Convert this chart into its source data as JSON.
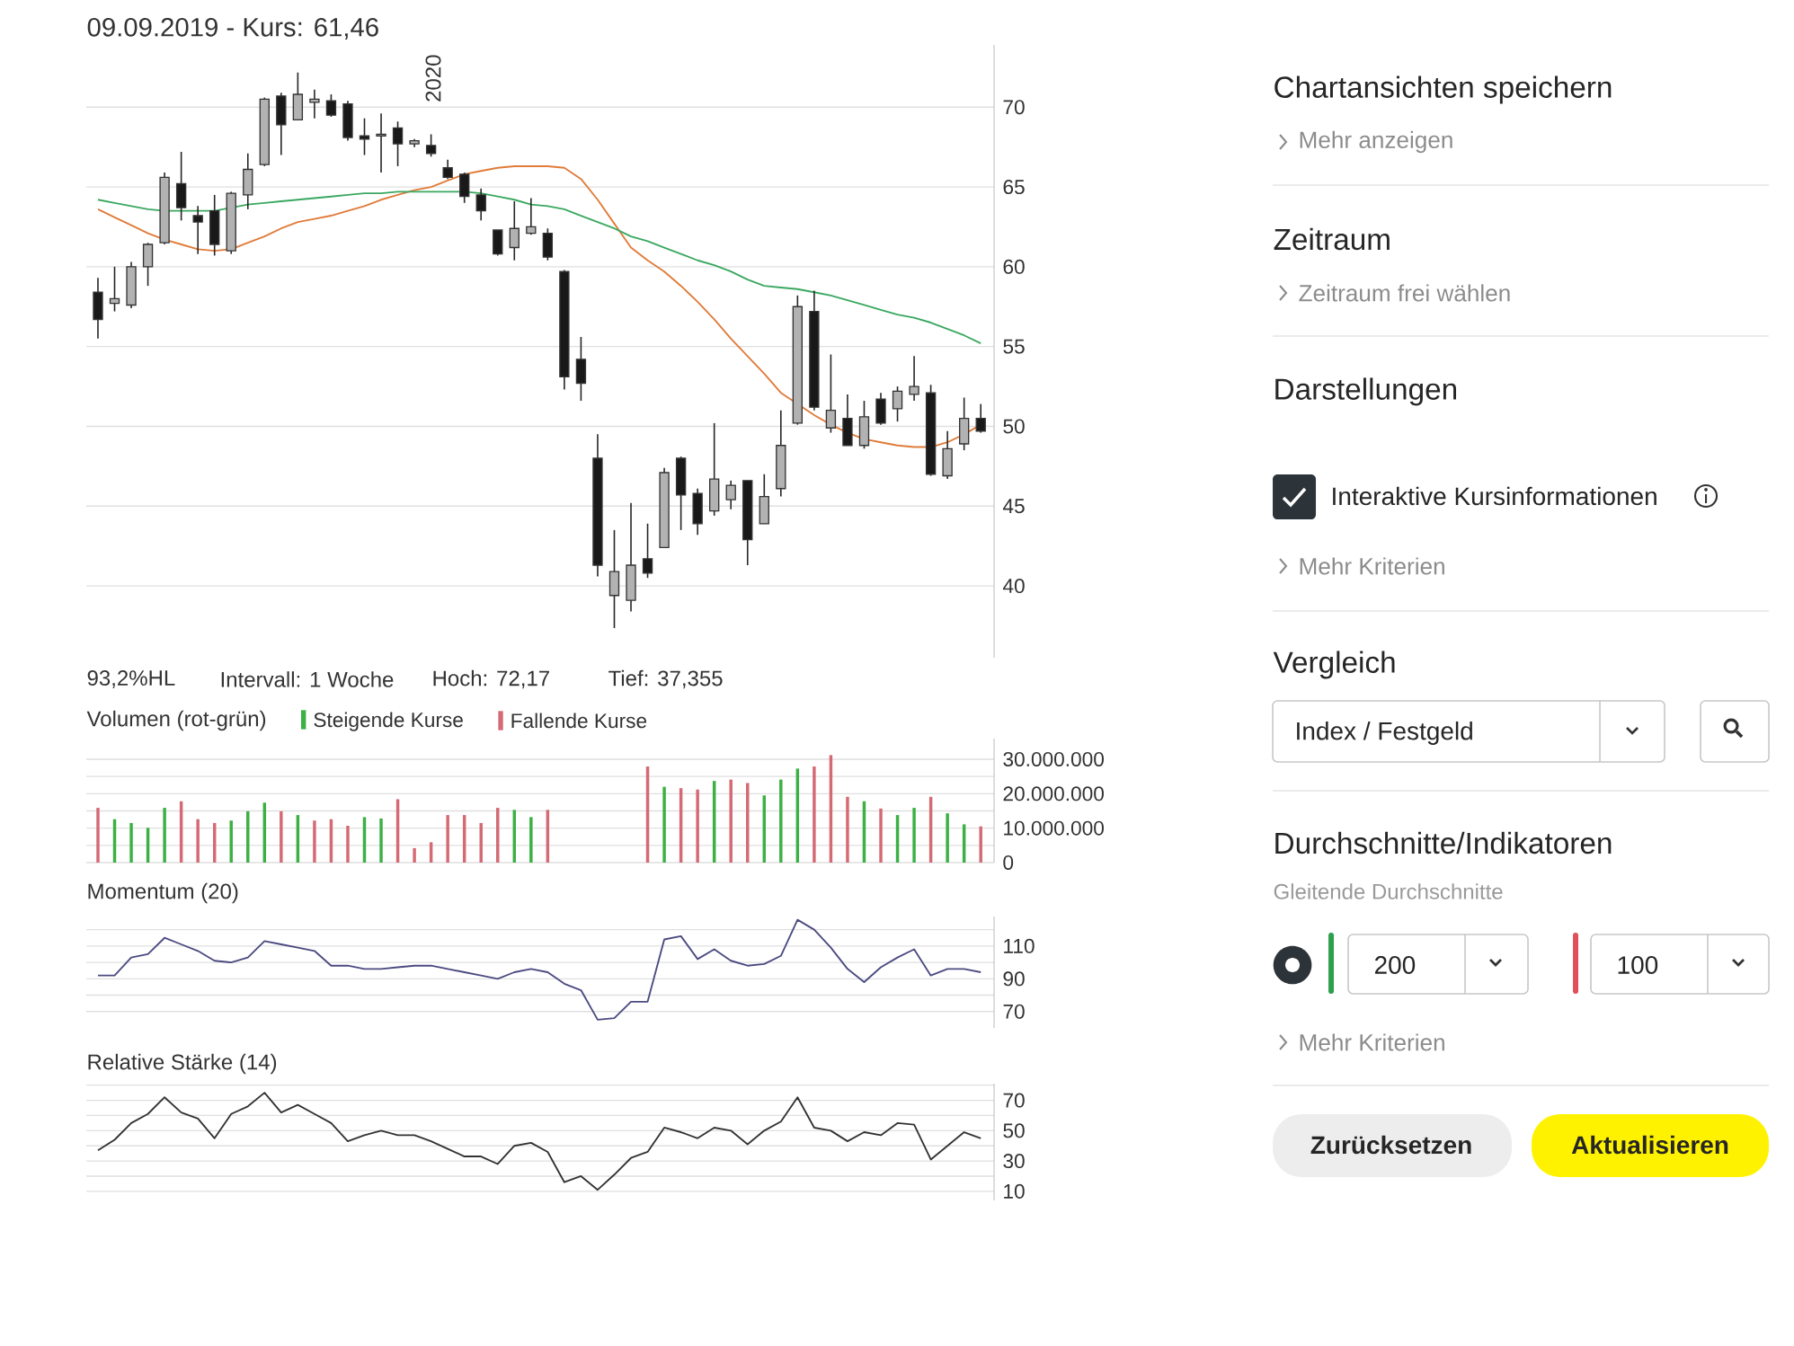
{
  "chart_data": [
    {
      "type": "candlestick",
      "title": "09.09.2019  -  Kurs: 61,46",
      "categories": [
        null,
        null,
        null,
        null,
        null,
        null,
        null,
        null,
        null,
        null,
        null,
        null,
        null,
        null,
        null,
        null,
        null,
        null,
        null,
        null,
        null,
        null,
        null,
        null,
        null,
        null,
        null,
        null,
        null,
        null,
        null,
        null,
        null,
        null,
        null,
        null,
        null,
        null,
        null,
        null,
        null,
        null,
        null,
        null,
        null,
        null,
        null,
        null,
        null,
        null,
        null,
        null,
        null,
        null
      ],
      "ohlc": [
        [
          58.4,
          59.3,
          55.5,
          56.7
        ],
        [
          57.7,
          60.0,
          57.2,
          58.0
        ],
        [
          57.6,
          60.3,
          57.4,
          60.0
        ],
        [
          60.0,
          61.5,
          58.8,
          61.4
        ],
        [
          61.5,
          65.9,
          61.4,
          65.6
        ],
        [
          65.2,
          67.2,
          62.9,
          63.7
        ],
        [
          63.2,
          63.8,
          60.8,
          62.8
        ],
        [
          63.5,
          64.5,
          60.7,
          61.4
        ],
        [
          61.0,
          64.7,
          60.8,
          64.6
        ],
        [
          64.5,
          67.1,
          63.6,
          66.1
        ],
        [
          66.4,
          70.6,
          66.3,
          70.5
        ],
        [
          70.7,
          70.9,
          67.0,
          68.9
        ],
        [
          69.2,
          72.17,
          69.2,
          70.8
        ],
        [
          70.3,
          71.1,
          69.3,
          70.5
        ],
        [
          70.4,
          70.8,
          69.4,
          69.5
        ],
        [
          70.2,
          70.4,
          67.9,
          68.1
        ],
        [
          68.2,
          69.3,
          67.0,
          68.0
        ],
        [
          68.2,
          69.6,
          65.9,
          68.3
        ],
        [
          68.7,
          69.1,
          66.3,
          67.7
        ],
        [
          67.7,
          68.0,
          67.5,
          67.9
        ],
        [
          67.6,
          68.3,
          66.9,
          67.1
        ],
        [
          66.2,
          66.7,
          65.5,
          65.6
        ],
        [
          65.8,
          65.9,
          64.0,
          64.4
        ],
        [
          64.5,
          64.9,
          62.9,
          63.5
        ],
        [
          62.3,
          62.3,
          60.7,
          60.8
        ],
        [
          61.2,
          64.1,
          60.4,
          62.4
        ],
        [
          62.1,
          64.3,
          62.0,
          62.5
        ],
        [
          62.1,
          62.4,
          60.4,
          60.6
        ],
        [
          59.7,
          59.8,
          52.3,
          53.1
        ],
        [
          54.2,
          55.6,
          51.6,
          52.7
        ],
        [
          48.0,
          49.5,
          40.6,
          41.3
        ],
        [
          39.4,
          43.5,
          37.355,
          40.9
        ],
        [
          39.1,
          45.2,
          38.4,
          41.3
        ],
        [
          41.7,
          43.9,
          40.5,
          40.8
        ],
        [
          42.4,
          47.4,
          42.4,
          47.1
        ],
        [
          48.0,
          48.1,
          43.5,
          45.7
        ],
        [
          45.8,
          46.1,
          43.2,
          43.9
        ],
        [
          44.7,
          50.2,
          44.4,
          46.7
        ],
        [
          45.4,
          46.6,
          44.8,
          46.3
        ],
        [
          46.6,
          46.6,
          41.3,
          42.9
        ],
        [
          43.9,
          47.0,
          43.9,
          45.6
        ],
        [
          46.1,
          51.0,
          45.6,
          48.8
        ],
        [
          50.2,
          58.2,
          50.1,
          57.5
        ],
        [
          57.2,
          58.5,
          51.0,
          51.2
        ],
        [
          49.9,
          54.5,
          49.6,
          51.0
        ],
        [
          50.5,
          52.0,
          48.8,
          48.8
        ],
        [
          48.8,
          51.6,
          48.6,
          50.6
        ],
        [
          51.7,
          52.1,
          50.1,
          50.2
        ],
        [
          51.1,
          52.5,
          50.3,
          52.2
        ],
        [
          52.0,
          54.4,
          51.6,
          52.5
        ],
        [
          52.1,
          52.6,
          46.9,
          47.0
        ],
        [
          46.9,
          49.7,
          46.7,
          48.6
        ],
        [
          48.9,
          51.8,
          48.5,
          50.5
        ],
        [
          50.5,
          51.4,
          49.6,
          49.7
        ]
      ],
      "series": [
        {
          "type": "line",
          "color": "#e07b39",
          "values": [
            63.6,
            63.1,
            62.6,
            62.1,
            61.7,
            61.4,
            61.1,
            61.0,
            61.1,
            61.5,
            61.9,
            62.4,
            62.8,
            63.0,
            63.2,
            63.5,
            63.8,
            64.2,
            64.5,
            64.8,
            65.0,
            65.4,
            65.8,
            66.0,
            66.2,
            66.3,
            66.3,
            66.3,
            66.2,
            65.5,
            64.2,
            62.7,
            61.2,
            60.4,
            59.7,
            58.8,
            57.8,
            56.7,
            55.5,
            54.4,
            53.3,
            52.1,
            51.4,
            50.7,
            50.1,
            49.6,
            49.2,
            49.0,
            48.8,
            48.7,
            48.7,
            49.0,
            49.5,
            50.1
          ]
        },
        {
          "type": "line",
          "color": "#3aa860",
          "values": [
            64.2,
            64.0,
            63.8,
            63.6,
            63.5,
            63.5,
            63.5,
            63.5,
            63.7,
            63.9,
            64.0,
            64.1,
            64.2,
            64.3,
            64.4,
            64.5,
            64.6,
            64.6,
            64.7,
            64.7,
            64.7,
            64.7,
            64.7,
            64.6,
            64.4,
            64.2,
            63.9,
            63.8,
            63.6,
            63.2,
            62.8,
            62.4,
            61.9,
            61.6,
            61.2,
            60.8,
            60.4,
            60.1,
            59.7,
            59.2,
            58.8,
            58.7,
            58.6,
            58.4,
            58.2,
            57.9,
            57.6,
            57.3,
            57.0,
            56.8,
            56.5,
            56.1,
            55.7,
            55.2
          ]
        }
      ],
      "ylim": [
        35.5,
        73.9
      ],
      "yticks": [
        40,
        45,
        50,
        55,
        60,
        65,
        70
      ],
      "grid": "y",
      "tick_labels": "y",
      "annotations": [
        "93,2%HL",
        "Intervall: 1 Woche",
        "Hoch:  72,17",
        "Tief:  37,355",
        "2020"
      ]
    },
    {
      "type": "bar",
      "title": "Volumen (rot-grün)",
      "legend": "top left",
      "stacked": true,
      "categories": [
        null,
        null,
        null,
        null,
        null,
        null,
        null,
        null,
        null,
        null,
        null,
        null,
        null,
        null,
        null,
        null,
        null,
        null,
        null,
        null,
        null,
        null,
        null,
        null,
        null,
        null,
        null,
        null,
        null,
        null,
        null,
        null,
        null,
        null,
        null,
        null,
        null,
        null,
        null,
        null,
        null,
        null,
        null,
        null,
        null,
        null,
        null,
        null,
        null,
        null,
        null,
        null,
        null,
        null
      ],
      "series": [
        {
          "name": "Steigende Kurse",
          "color": "#3cb043",
          "values": [
            0,
            12600000,
            11500000,
            10100000,
            15900000,
            0,
            0,
            0,
            12200000,
            14900000,
            17400000,
            0,
            13800000,
            0,
            0,
            0,
            13200000,
            12800000,
            0,
            0,
            0,
            0,
            0,
            0,
            0,
            15300000,
            13200000,
            0,
            0,
            0,
            0,
            0,
            null,
            0,
            22000000,
            0,
            0,
            23700000,
            0,
            0,
            19500000,
            24100000,
            27300000,
            0,
            0,
            0,
            17800000,
            0,
            13800000,
            15900000,
            0,
            14300000,
            11100000,
            0
          ]
        },
        {
          "name": "Fallende Kurse",
          "color": "#d46a74",
          "values": [
            15900000,
            0,
            0,
            0,
            0,
            17800000,
            12600000,
            11500000,
            0,
            0,
            0,
            14900000,
            0,
            12200000,
            12600000,
            10700000,
            0,
            0,
            18400000,
            4200000,
            5900000,
            13800000,
            13800000,
            11500000,
            15900000,
            0,
            0,
            15300000,
            null,
            null,
            null,
            null,
            0,
            27900000,
            0,
            21600000,
            21200000,
            0,
            24100000,
            23100000,
            0,
            0,
            0,
            27900000,
            31200000,
            19100000,
            0,
            15700000,
            0,
            0,
            19100000,
            0,
            0,
            10500000
          ]
        }
      ],
      "ylim": [
        0,
        36000000
      ],
      "yticks": [
        {
          "value": 0,
          "label": "0"
        },
        {
          "value": 5000000,
          "label": null
        },
        {
          "value": 10000000,
          "label": "10.000.000"
        },
        {
          "value": 15000000,
          "label": null
        },
        {
          "value": 20000000,
          "label": "20.000.000"
        },
        {
          "value": 25000000,
          "label": null
        },
        {
          "value": 30000000,
          "label": "30.000.000"
        }
      ],
      "grid": "y",
      "tick_labels": "y"
    },
    {
      "type": "line",
      "title": "Momentum (20)",
      "color": "#4b4a80",
      "categories": [
        null,
        null,
        null,
        null,
        null,
        null,
        null,
        null,
        null,
        null,
        null,
        null,
        null,
        null,
        null,
        null,
        null,
        null,
        null,
        null,
        null,
        null,
        null,
        null,
        null,
        null,
        null,
        null,
        null,
        null,
        null,
        null,
        null,
        null,
        null,
        null,
        null,
        null,
        null,
        null,
        null,
        null,
        null,
        null,
        null,
        null,
        null,
        null,
        null,
        null,
        null,
        null,
        null,
        null
      ],
      "values": [
        92,
        92,
        103,
        105,
        115,
        111,
        107,
        101,
        100,
        103,
        113,
        111,
        109,
        107,
        98,
        98,
        96,
        96,
        97,
        98,
        98,
        96,
        94,
        92,
        90,
        94,
        96,
        94,
        87,
        83,
        65,
        66,
        76,
        76,
        114,
        116,
        102,
        108,
        101,
        98,
        99,
        104,
        126,
        120,
        109,
        96,
        88,
        97,
        103,
        108,
        92,
        96,
        96,
        94
      ],
      "ylim": [
        60,
        128
      ],
      "yticks": [
        {
          "value": 70,
          "label": "70"
        },
        {
          "value": 80,
          "label": null
        },
        {
          "value": 90,
          "label": "90"
        },
        {
          "value": 100,
          "label": null
        },
        {
          "value": 110,
          "label": "110"
        },
        {
          "value": 120,
          "label": null
        }
      ],
      "grid": "y",
      "tick_labels": "y"
    },
    {
      "type": "line",
      "title": "Relative Stärke (14)",
      "color": "#333333",
      "categories": [
        null,
        null,
        null,
        null,
        null,
        null,
        null,
        null,
        null,
        null,
        null,
        null,
        null,
        null,
        null,
        null,
        null,
        null,
        null,
        null,
        null,
        null,
        null,
        null,
        null,
        null,
        null,
        null,
        null,
        null,
        null,
        null,
        null,
        null,
        null,
        null,
        null,
        null,
        null,
        null,
        null,
        null,
        null,
        null,
        null,
        null,
        null,
        null,
        null,
        null,
        null,
        null,
        null,
        null
      ],
      "values": [
        37,
        44,
        55,
        61,
        72,
        62,
        58,
        45,
        61,
        66,
        75,
        62,
        67,
        61,
        55,
        43,
        47,
        50,
        47,
        47,
        43,
        38,
        33,
        33,
        28,
        40,
        42,
        36,
        16,
        20,
        11,
        21,
        32,
        36,
        52,
        49,
        45,
        52,
        50,
        41,
        50,
        56,
        72,
        52,
        50,
        43,
        49,
        47,
        55,
        54,
        31,
        40,
        49,
        45
      ],
      "ylim": [
        4,
        81
      ],
      "yticks": [
        {
          "value": 10,
          "label": "10"
        },
        {
          "value": 20,
          "label": null
        },
        {
          "value": 30,
          "label": "30"
        },
        {
          "value": 40,
          "label": null
        },
        {
          "value": 50,
          "label": "50"
        },
        {
          "value": 60,
          "label": null
        },
        {
          "value": 70,
          "label": "70"
        },
        {
          "value": 80,
          "label": null
        }
      ],
      "grid": "y",
      "tick_labels": "y"
    },
    {
      "type": "other",
      "annotations": [
        "Chartansichten speichern",
        "Mehr anzeigen",
        "Zeitraum",
        "Zeitraum frei wählen",
        "Darstellungen",
        "Interaktive Kursinformationen",
        "Mehr Kriterien",
        "Vergleich",
        "Index / Festgeld",
        "Durchschnitte/Indikatoren",
        "Gleitende Durchschnitte",
        "200",
        "100",
        "Mehr Kriterien",
        "Zurücksetzen",
        "Aktualisieren"
      ]
    }
  ]
}
